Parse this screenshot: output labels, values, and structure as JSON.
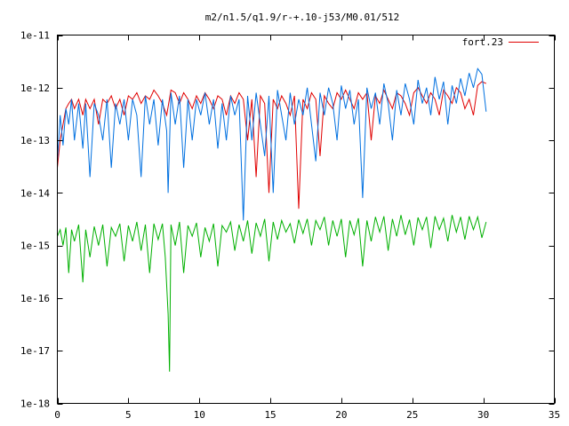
{
  "chart_data": {
    "type": "line",
    "title": "m2/n1.5/q1.9/r-+.10-j53/M0.01/512",
    "xlabel": "",
    "ylabel": "",
    "xlim": [
      0,
      35
    ],
    "ylim": [
      1e-18,
      1e-11
    ],
    "yscale": "log",
    "grid": false,
    "legend_position": "top-right",
    "x_ticks": [
      {
        "value": 0,
        "label": "0"
      },
      {
        "value": 5,
        "label": "5"
      },
      {
        "value": 10,
        "label": "10"
      },
      {
        "value": 15,
        "label": "15"
      },
      {
        "value": 20,
        "label": "20"
      },
      {
        "value": 25,
        "label": "25"
      },
      {
        "value": 30,
        "label": "30"
      },
      {
        "value": 35,
        "label": "35"
      }
    ],
    "y_ticks": [
      {
        "value": 1e-18,
        "label": "1e-18"
      },
      {
        "value": 1e-17,
        "label": "1e-17"
      },
      {
        "value": 1e-16,
        "label": "1e-16"
      },
      {
        "value": 1e-15,
        "label": "1e-15"
      },
      {
        "value": 1e-14,
        "label": "1e-14"
      },
      {
        "value": 1e-13,
        "label": "1e-13"
      },
      {
        "value": 1e-12,
        "label": "1e-12"
      },
      {
        "value": 1e-11,
        "label": "1e-11"
      }
    ],
    "series": [
      {
        "name": "fort.23",
        "color": "#e00000",
        "x": [
          0.0,
          0.2,
          0.4,
          0.6,
          0.8,
          1.0,
          1.2,
          1.5,
          1.8,
          2.0,
          2.3,
          2.6,
          2.9,
          3.2,
          3.5,
          3.8,
          4.1,
          4.4,
          4.7,
          5.0,
          5.3,
          5.6,
          5.9,
          6.2,
          6.5,
          6.8,
          7.1,
          7.4,
          7.7,
          8.0,
          8.3,
          8.6,
          8.9,
          9.2,
          9.5,
          9.8,
          10.1,
          10.4,
          10.7,
          11.0,
          11.3,
          11.6,
          11.9,
          12.2,
          12.5,
          12.8,
          13.1,
          13.4,
          13.7,
          14.0,
          14.3,
          14.6,
          14.9,
          15.2,
          15.5,
          15.8,
          16.1,
          16.4,
          16.7,
          17.0,
          17.3,
          17.6,
          17.9,
          18.2,
          18.5,
          18.8,
          19.1,
          19.4,
          19.7,
          20.0,
          20.3,
          20.6,
          20.9,
          21.2,
          21.5,
          21.8,
          22.1,
          22.4,
          22.7,
          23.0,
          23.3,
          23.6,
          23.9,
          24.2,
          24.5,
          24.8,
          25.1,
          25.4,
          25.7,
          26.0,
          26.3,
          26.6,
          26.9,
          27.2,
          27.5,
          27.8,
          28.1,
          28.4,
          28.7,
          29.0,
          29.3,
          29.6,
          29.9,
          30.2
        ],
        "y": [
          3e-14,
          1e-13,
          2e-13,
          4e-13,
          5e-13,
          6e-13,
          4e-13,
          6e-13,
          3e-13,
          6e-13,
          4e-13,
          6e-13,
          2e-13,
          6e-13,
          5e-13,
          7e-13,
          4e-13,
          6e-13,
          3e-13,
          7e-13,
          6e-13,
          8e-13,
          5e-13,
          7e-13,
          6e-13,
          9e-13,
          7e-13,
          5e-13,
          3e-13,
          9e-13,
          8e-13,
          5e-13,
          8e-13,
          6e-13,
          4e-13,
          7e-13,
          5e-13,
          8e-13,
          6e-13,
          4e-13,
          7e-13,
          6e-13,
          3e-13,
          7e-13,
          5e-13,
          8e-13,
          6e-13,
          1e-13,
          6e-13,
          2e-14,
          7e-13,
          5e-13,
          1e-14,
          6e-13,
          4e-13,
          7e-13,
          5e-13,
          3e-13,
          7e-13,
          5e-15,
          6e-13,
          4e-13,
          8e-13,
          6e-13,
          5e-14,
          7e-13,
          5e-13,
          4e-13,
          8e-13,
          6e-13,
          9e-13,
          6e-13,
          4e-13,
          8e-13,
          6e-13,
          8e-13,
          1e-13,
          7e-13,
          5e-13,
          9e-13,
          6e-13,
          4e-13,
          8e-13,
          7e-13,
          5e-13,
          3e-13,
          8e-13,
          1e-12,
          7e-13,
          5e-13,
          8e-13,
          6e-13,
          3e-13,
          9e-13,
          7e-13,
          5e-13,
          1e-12,
          8e-13,
          4e-13,
          6e-13,
          3e-13,
          1.1e-12,
          1.3e-12,
          1.2e-12
        ]
      },
      {
        "name": "",
        "color": "#0070e0",
        "x": [
          0.0,
          0.2,
          0.4,
          0.6,
          0.8,
          1.0,
          1.2,
          1.5,
          1.8,
          2.0,
          2.3,
          2.6,
          2.9,
          3.2,
          3.5,
          3.8,
          4.1,
          4.4,
          4.7,
          5.0,
          5.3,
          5.6,
          5.9,
          6.2,
          6.5,
          6.8,
          7.1,
          7.4,
          7.7,
          7.8,
          8.0,
          8.3,
          8.6,
          8.9,
          9.2,
          9.5,
          9.8,
          10.1,
          10.4,
          10.7,
          11.0,
          11.3,
          11.6,
          11.9,
          12.2,
          12.5,
          12.8,
          13.1,
          13.4,
          13.7,
          14.0,
          14.3,
          14.6,
          14.9,
          15.2,
          15.5,
          15.8,
          16.1,
          16.4,
          16.7,
          17.0,
          17.3,
          17.6,
          17.9,
          18.2,
          18.5,
          18.8,
          19.1,
          19.4,
          19.7,
          20.0,
          20.3,
          20.6,
          20.9,
          21.2,
          21.5,
          21.8,
          22.1,
          22.4,
          22.7,
          23.0,
          23.3,
          23.6,
          23.9,
          24.2,
          24.5,
          24.8,
          25.1,
          25.4,
          25.7,
          26.0,
          26.3,
          26.6,
          26.9,
          27.2,
          27.5,
          27.8,
          28.1,
          28.4,
          28.7,
          29.0,
          29.3,
          29.6,
          29.9,
          30.2
        ],
        "y": [
          4e-14,
          3e-13,
          8e-14,
          4e-13,
          2e-13,
          6e-13,
          1e-13,
          5e-13,
          7e-14,
          5e-13,
          2e-14,
          5e-13,
          3e-13,
          1e-13,
          6e-13,
          3e-14,
          5e-13,
          2e-13,
          6e-13,
          1e-13,
          6e-13,
          3e-13,
          2e-14,
          7e-13,
          2e-13,
          6e-13,
          8e-14,
          6e-13,
          1.5e-13,
          1e-14,
          8e-13,
          2e-13,
          7e-13,
          3e-14,
          6e-13,
          1e-13,
          6e-13,
          3e-13,
          8e-13,
          2e-13,
          6e-13,
          7e-14,
          5e-13,
          1e-13,
          7e-13,
          3e-13,
          6e-13,
          3e-15,
          7e-13,
          1e-13,
          8e-13,
          2e-13,
          5e-14,
          7e-13,
          1e-14,
          9e-13,
          3e-13,
          1e-13,
          8e-13,
          2e-13,
          6e-13,
          3e-13,
          1e-12,
          2e-13,
          4e-14,
          8e-13,
          3e-13,
          1e-12,
          5e-13,
          1e-13,
          1.1e-12,
          4e-13,
          9e-13,
          2e-13,
          6e-13,
          8e-15,
          1e-12,
          4e-13,
          8e-13,
          2e-13,
          1.2e-12,
          5e-13,
          1e-13,
          9e-13,
          3e-13,
          1.2e-12,
          6e-13,
          2e-13,
          1.4e-12,
          5e-13,
          1e-12,
          3e-13,
          1.6e-12,
          6e-13,
          1.3e-12,
          2e-13,
          1.1e-12,
          5e-13,
          1.5e-12,
          7e-13,
          1.9e-12,
          1e-12,
          2.3e-12,
          1.8e-12,
          3.5e-13
        ]
      },
      {
        "name": "",
        "color": "#00b000",
        "x": [
          0.0,
          0.2,
          0.4,
          0.6,
          0.8,
          1.0,
          1.2,
          1.5,
          1.8,
          2.0,
          2.3,
          2.6,
          2.9,
          3.2,
          3.5,
          3.8,
          4.1,
          4.4,
          4.7,
          5.0,
          5.3,
          5.6,
          5.9,
          6.2,
          6.5,
          6.8,
          7.1,
          7.4,
          7.6,
          7.8,
          7.9,
          8.0,
          8.3,
          8.6,
          8.9,
          9.2,
          9.5,
          9.8,
          10.1,
          10.4,
          10.7,
          11.0,
          11.3,
          11.6,
          11.9,
          12.2,
          12.5,
          12.8,
          13.1,
          13.4,
          13.7,
          14.0,
          14.3,
          14.6,
          14.9,
          15.2,
          15.5,
          15.8,
          16.1,
          16.4,
          16.7,
          17.0,
          17.3,
          17.6,
          17.9,
          18.2,
          18.5,
          18.8,
          19.1,
          19.4,
          19.7,
          20.0,
          20.3,
          20.6,
          20.9,
          21.2,
          21.5,
          21.8,
          22.1,
          22.4,
          22.7,
          23.0,
          23.3,
          23.6,
          23.9,
          24.2,
          24.5,
          24.8,
          25.1,
          25.4,
          25.7,
          26.0,
          26.3,
          26.6,
          26.9,
          27.2,
          27.5,
          27.8,
          28.1,
          28.4,
          28.7,
          29.0,
          29.3,
          29.6,
          29.9,
          30.2
        ],
        "y": [
          1.5e-15,
          2e-15,
          1e-15,
          2.2e-15,
          3e-16,
          2e-15,
          1.2e-15,
          2.5e-15,
          2e-16,
          2e-15,
          6e-16,
          2.3e-15,
          1e-15,
          2.5e-15,
          4e-16,
          2.2e-15,
          1.5e-15,
          2.6e-15,
          5e-16,
          2.4e-15,
          1.2e-15,
          2.8e-15,
          8e-16,
          2.5e-15,
          3e-16,
          2.6e-15,
          1.3e-15,
          2.6e-15,
          6e-16,
          5e-17,
          4e-18,
          2.5e-15,
          1e-15,
          2.8e-15,
          3e-16,
          2.4e-15,
          1.5e-15,
          2.7e-15,
          6e-16,
          2.2e-15,
          1.2e-15,
          2.6e-15,
          4e-16,
          2.4e-15,
          1.8e-15,
          2.8e-15,
          8e-16,
          2.5e-15,
          1.2e-15,
          3e-15,
          7e-16,
          2.7e-15,
          1.5e-15,
          3.2e-15,
          5e-16,
          2.8e-15,
          1.3e-15,
          3e-15,
          1.8e-15,
          2.6e-15,
          1.1e-15,
          3.1e-15,
          1.7e-15,
          3.2e-15,
          1e-15,
          3e-15,
          2e-15,
          3.5e-15,
          1e-15,
          3e-15,
          1.5e-15,
          3.2e-15,
          6e-16,
          3e-15,
          1.6e-15,
          3.3e-15,
          4e-16,
          3e-15,
          1.2e-15,
          3.5e-15,
          1.8e-15,
          3.6e-15,
          8e-16,
          3.2e-15,
          1.5e-15,
          3.8e-15,
          1.6e-15,
          3.1e-15,
          1e-15,
          3.4e-15,
          2e-15,
          3.5e-15,
          9e-16,
          3.6e-15,
          2e-15,
          3.3e-15,
          1.2e-15,
          3.8e-15,
          1.8e-15,
          3.5e-15,
          1.3e-15,
          3.6e-15,
          2e-15,
          3.5e-15,
          1.4e-15,
          2.8e-15
        ]
      }
    ]
  }
}
